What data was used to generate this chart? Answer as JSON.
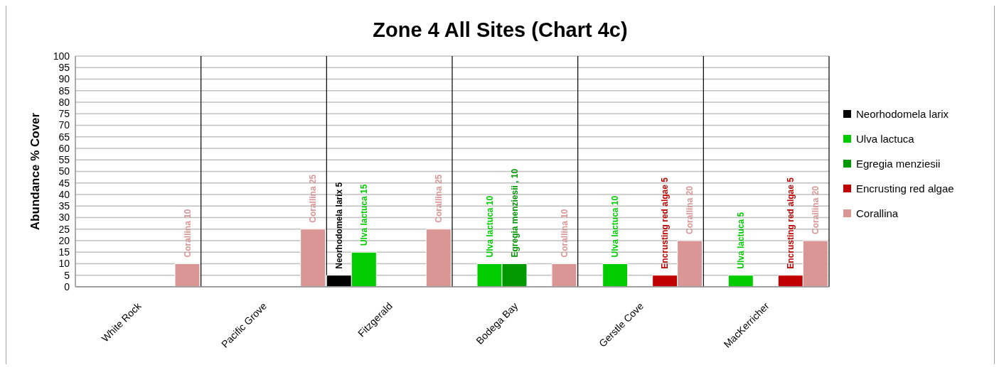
{
  "chart_data": {
    "type": "bar",
    "title": "Zone 4 All Sites (Chart 4c)",
    "ylabel": "Abundance % Cover",
    "categories": [
      "White Rock",
      "Pacific Grove",
      "Fitzgerald",
      "Bodega Bay",
      "Gerstle Cove",
      "MacKerricher"
    ],
    "series": [
      {
        "name": "Neorhodomela larix",
        "color": "#000000",
        "values": [
          null,
          null,
          5,
          null,
          null,
          null
        ],
        "value_labels": [
          null,
          null,
          "Neorhodomela larix 5",
          null,
          null,
          null
        ]
      },
      {
        "name": "Ulva lactuca",
        "color": "#00cc00",
        "values": [
          null,
          null,
          15,
          10,
          10,
          5
        ],
        "value_labels": [
          null,
          null,
          "Ulva lactuca 15",
          "Ulva lactuca 10",
          "Ulva lactuca 10",
          "Ulva lactuca 5"
        ]
      },
      {
        "name": "Egregia menziesii",
        "color": "#009900",
        "values": [
          null,
          null,
          null,
          10,
          null,
          null
        ],
        "value_labels": [
          null,
          null,
          null,
          "Egregia menziesii , 10",
          null,
          null
        ]
      },
      {
        "name": "Encrusting red algae",
        "color": "#c00000",
        "values": [
          null,
          null,
          null,
          null,
          5,
          5
        ],
        "value_labels": [
          null,
          null,
          null,
          null,
          "Encrusting red algae 5",
          "Encrusting red algae 5"
        ]
      },
      {
        "name": "Corallina",
        "color": "#d99694",
        "values": [
          10,
          25,
          25,
          10,
          20,
          20
        ],
        "value_labels": [
          "Corallina 10",
          "Corallina 25",
          "Corallina 25",
          "Corallina 10",
          "Corallina 20",
          "Corallina 20"
        ]
      }
    ],
    "ylim": [
      0,
      100
    ],
    "yticks": [
      0,
      5,
      10,
      15,
      20,
      25,
      30,
      35,
      40,
      45,
      50,
      55,
      60,
      65,
      70,
      75,
      80,
      85,
      90,
      95,
      100
    ],
    "grid": true,
    "legend": "right"
  }
}
